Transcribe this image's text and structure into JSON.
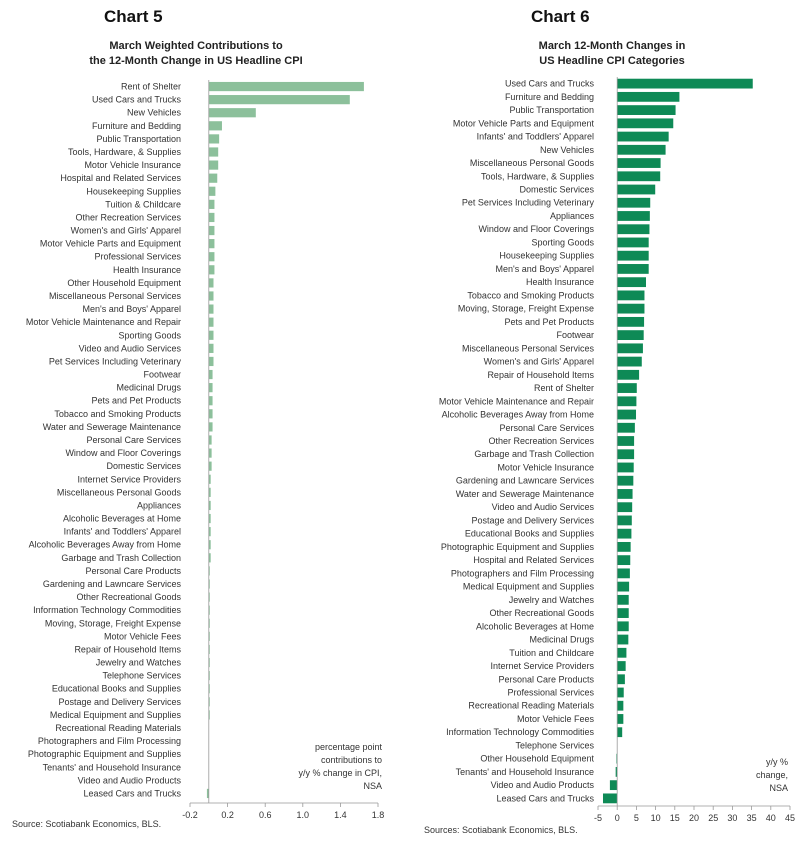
{
  "chart_data": [
    {
      "type": "bar",
      "orientation": "horizontal",
      "heading": "Chart 5",
      "title": [
        "March Weighted Contributions to",
        "the 12-Month Change in US Headline CPI"
      ],
      "color": "#8cc09b",
      "xlim": [
        -0.2,
        1.8
      ],
      "xticks": [
        "-0.2",
        "0.2",
        "0.6",
        "1.0",
        "1.4",
        "1.8"
      ],
      "xtick_values": [
        -0.2,
        0.2,
        0.6,
        1.0,
        1.4,
        1.8
      ],
      "note": [
        "percentage point",
        "contributions to",
        "y/y % change in CPI,",
        "NSA"
      ],
      "source": "Source: Scotiabank Economics, BLS.",
      "categories": [
        "Rent of Shelter",
        "Used Cars and Trucks",
        "New Vehicles",
        "Furniture and Bedding",
        "Public Transportation",
        "Tools, Hardware, & Supplies",
        "Motor Vehicle Insurance",
        "Hospital and Related Services",
        "Housekeeping Supplies",
        "Tuition & Childcare",
        "Other Recreation Services",
        "Women's and Girls' Apparel",
        "Motor Vehicle Parts and Equipment",
        "Professional Services",
        "Health Insurance",
        "Other Household Equipment",
        "Miscellaneous Personal Services",
        "Men's and Boys' Apparel",
        "Motor Vehicle Maintenance and Repair",
        "Sporting Goods",
        "Video and Audio Services",
        "Pet Services Including Veterinary",
        "Footwear",
        "Medicinal Drugs",
        "Pets and Pet Products",
        "Tobacco and Smoking Products",
        "Water and Sewerage Maintenance",
        "Personal Care Services",
        "Window and Floor Coverings",
        "Domestic Services",
        "Internet Service Providers",
        "Miscellaneous Personal Goods",
        "Appliances",
        "Alcoholic Beverages at Home",
        "Infants' and Toddlers' Apparel",
        "Alcoholic Beverages Away from Home",
        "Garbage and Trash Collection",
        "Personal Care Products",
        "Gardening and Lawncare Services",
        "Other Recreational Goods",
        "Information Technology Commodities",
        "Moving, Storage, Freight Expense",
        "Motor Vehicle Fees",
        "Repair of Household Items",
        "Jewelry and Watches",
        "Telephone Services",
        "Educational Books and Supplies",
        "Postage and Delivery Services",
        "Medical Equipment and Supplies",
        "Recreational Reading Materials",
        "Photographers and Film Processing",
        "Photographic Equipment and Supplies",
        "Tenants' and Household Insurance",
        "Video and Audio Products",
        "Leased Cars and Trucks"
      ],
      "values": [
        1.65,
        1.5,
        0.5,
        0.14,
        0.11,
        0.1,
        0.1,
        0.09,
        0.07,
        0.06,
        0.06,
        0.06,
        0.06,
        0.06,
        0.06,
        0.05,
        0.05,
        0.05,
        0.05,
        0.05,
        0.05,
        0.05,
        0.04,
        0.04,
        0.04,
        0.04,
        0.04,
        0.03,
        0.03,
        0.03,
        0.02,
        0.02,
        0.02,
        0.02,
        0.02,
        0.02,
        0.02,
        0.01,
        0.01,
        0.01,
        0.01,
        0.01,
        0.01,
        0.01,
        0.01,
        0.01,
        0.01,
        0.01,
        0.01,
        0.0,
        0.0,
        0.0,
        0.0,
        0.0,
        -0.02
      ]
    },
    {
      "type": "bar",
      "orientation": "horizontal",
      "heading": "Chart 6",
      "title": [
        "March 12-Month Changes in",
        "US Headline CPI Categories"
      ],
      "color": "#0e8a56",
      "xlim": [
        -5,
        45
      ],
      "xticks": [
        "-5",
        "0",
        "5",
        "10",
        "15",
        "20",
        "25",
        "30",
        "35",
        "40",
        "45"
      ],
      "xtick_values": [
        -5,
        0,
        5,
        10,
        15,
        20,
        25,
        30,
        35,
        40,
        45
      ],
      "note": [
        "y/y %",
        "change,",
        "NSA"
      ],
      "source": "Sources: Scotiabank Economics, BLS.",
      "categories": [
        "Used Cars and Trucks",
        "Furniture and Bedding",
        "Public Transportation",
        "Motor Vehicle Parts and Equipment",
        "Infants' and Toddlers' Apparel",
        "New Vehicles",
        "Miscellaneous Personal Goods",
        "Tools, Hardware, & Supplies",
        "Domestic Services",
        "Pet Services Including Veterinary",
        "Appliances",
        "Window and Floor Coverings",
        "Sporting Goods",
        "Housekeeping Supplies",
        "Men's and Boys' Apparel",
        "Health Insurance",
        "Tobacco and Smoking Products",
        "Moving, Storage, Freight Expense",
        "Pets and Pet Products",
        "Footwear",
        "Miscellaneous Personal Services",
        "Women's and Girls' Apparel",
        "Repair of Household Items",
        "Rent of Shelter",
        "Motor Vehicle Maintenance and Repair",
        "Alcoholic Beverages Away from Home",
        "Personal Care Services",
        "Other Recreation Services",
        "Garbage and Trash Collection",
        "Motor Vehicle Insurance",
        "Gardening and Lawncare Services",
        "Water and Sewerage Maintenance",
        "Video and Audio Services",
        "Postage and Delivery Services",
        "Educational Books and Supplies",
        "Photographic Equipment and Supplies",
        "Hospital and Related Services",
        "Photographers and Film Processing",
        "Medical Equipment and Supplies",
        "Jewelry and Watches",
        "Other Recreational Goods",
        "Alcoholic Beverages at Home",
        "Medicinal Drugs",
        "Tuition and Childcare",
        "Internet Service Providers",
        "Personal Care Products",
        "Professional Services",
        "Recreational Reading Materials",
        "Motor Vehicle Fees",
        "Information Technology Commodities",
        "Telephone Services",
        "Other Household Equipment",
        "Tenants' and Household Insurance",
        "Video and Audio Products",
        "Leased Cars and Trucks"
      ],
      "values": [
        35.3,
        16.2,
        15.2,
        14.6,
        13.4,
        12.6,
        11.3,
        11.2,
        9.9,
        8.6,
        8.5,
        8.4,
        8.2,
        8.2,
        8.2,
        7.5,
        7.1,
        7.1,
        7.0,
        6.9,
        6.7,
        6.4,
        5.7,
        5.1,
        5.0,
        4.9,
        4.6,
        4.4,
        4.4,
        4.3,
        4.2,
        4.0,
        3.9,
        3.8,
        3.7,
        3.5,
        3.4,
        3.3,
        3.1,
        3.0,
        3.0,
        3.0,
        2.9,
        2.4,
        2.2,
        2.0,
        1.7,
        1.6,
        1.6,
        1.3,
        0.0,
        -0.2,
        -0.4,
        -1.9,
        -3.7
      ]
    }
  ]
}
